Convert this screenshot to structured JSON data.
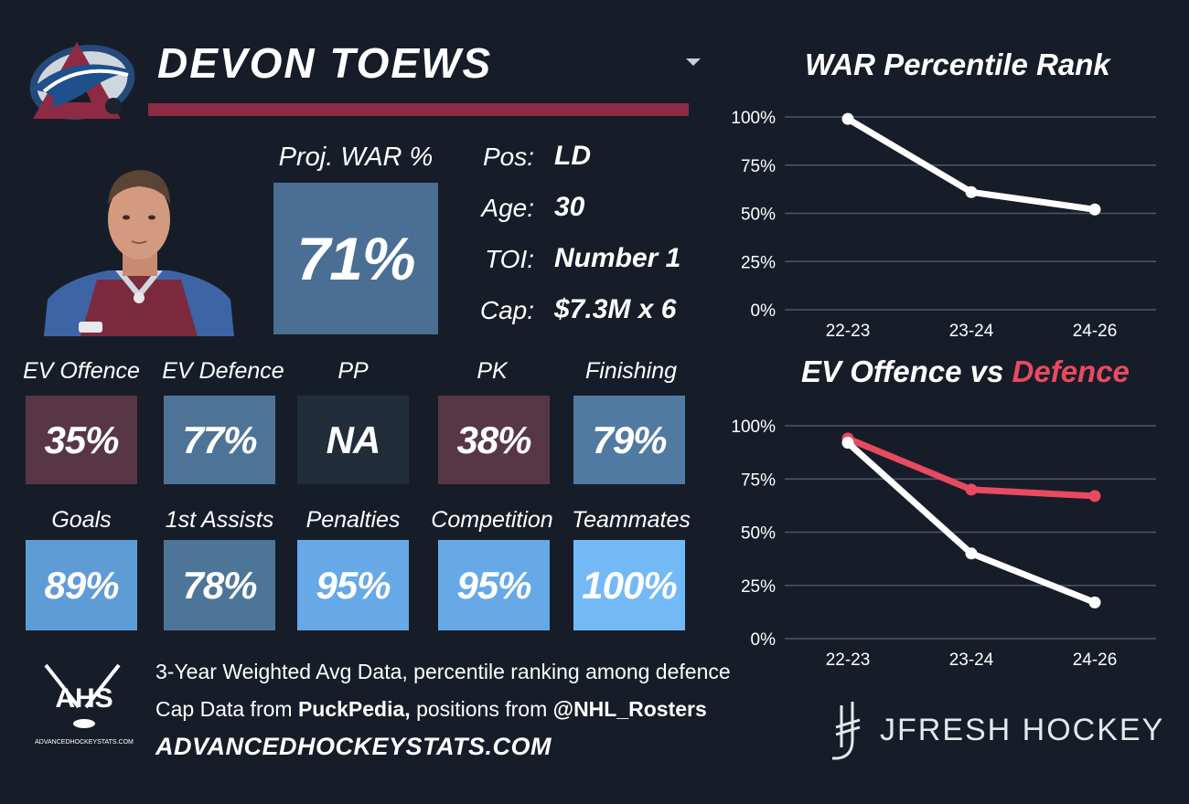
{
  "header": {
    "player_name": "DEVON TOEWS",
    "accent_bar_color": "#8e2a43"
  },
  "icons": {
    "team_logo": "avalanche-logo",
    "headshot": "player-headshot",
    "dropdown": "chevron-down-icon",
    "ahs_logo": "ahs-logo",
    "jfresh_logo": "jfresh-stick-logo"
  },
  "projection": {
    "label": "Proj. WAR %",
    "value": "71%",
    "color": "#4b6f94"
  },
  "info": [
    {
      "label": "Pos:",
      "value": "LD"
    },
    {
      "label": "Age:",
      "value": "30"
    },
    {
      "label": "TOI:",
      "value": "Number 1"
    },
    {
      "label": "Cap:",
      "value": "$7.3M x 6"
    }
  ],
  "stats_row1": [
    {
      "label": "EV Offence",
      "value": "35%",
      "color": "#583645"
    },
    {
      "label": "EV Defence",
      "value": "77%",
      "color": "#4d7497"
    },
    {
      "label": "PP",
      "value": "NA",
      "color": "#212d3b"
    },
    {
      "label": "PK",
      "value": "38%",
      "color": "#573746"
    },
    {
      "label": "Finishing",
      "value": "79%",
      "color": "#507aa1"
    }
  ],
  "stats_row2": [
    {
      "label": "Goals",
      "value": "89%",
      "color": "#5f9cd6"
    },
    {
      "label": "1st Assists",
      "value": "78%",
      "color": "#4d7598"
    },
    {
      "label": "Penalties",
      "value": "95%",
      "color": "#66a9e6"
    },
    {
      "label": "Competition",
      "value": "95%",
      "color": "#66a9e6"
    },
    {
      "label": "Teammates",
      "value": "100%",
      "color": "#73b9f5"
    }
  ],
  "footer": {
    "line1": "3-Year Weighted Avg Data, percentile ranking among defence",
    "line2_prefix": "Cap Data from ",
    "line2_source": "PuckPedia,",
    "line2_middle": " positions from ",
    "line2_handle": "@NHL_Rosters",
    "site": "ADVANCEDHOCKEYSTATS.COM",
    "ahs_text": "AHS",
    "ahs_small": "ADVANCEDHOCKEYSTATS.COM",
    "brand": "JFRESH HOCKEY"
  },
  "chart_data": [
    {
      "type": "line",
      "title": "WAR Percentile Rank",
      "categories": [
        "22-23",
        "23-24",
        "24-26"
      ],
      "series": [
        {
          "values": [
            99,
            61,
            52
          ],
          "color": "#ffffff"
        }
      ],
      "ylim": [
        0,
        100
      ],
      "yticks": [
        "0%",
        "25%",
        "50%",
        "75%",
        "100%"
      ],
      "grid": true
    },
    {
      "type": "line",
      "title_part1": "EV Offence vs ",
      "title_part2": "Defence",
      "categories": [
        "22-23",
        "23-24",
        "24-26"
      ],
      "series": [
        {
          "values": [
            92,
            40,
            17
          ],
          "color": "#ffffff"
        },
        {
          "values": [
            94,
            70,
            67
          ],
          "color": "#e84a5f"
        }
      ],
      "ylim": [
        0,
        100
      ],
      "yticks": [
        "0%",
        "25%",
        "50%",
        "75%",
        "100%"
      ],
      "grid": true
    }
  ]
}
